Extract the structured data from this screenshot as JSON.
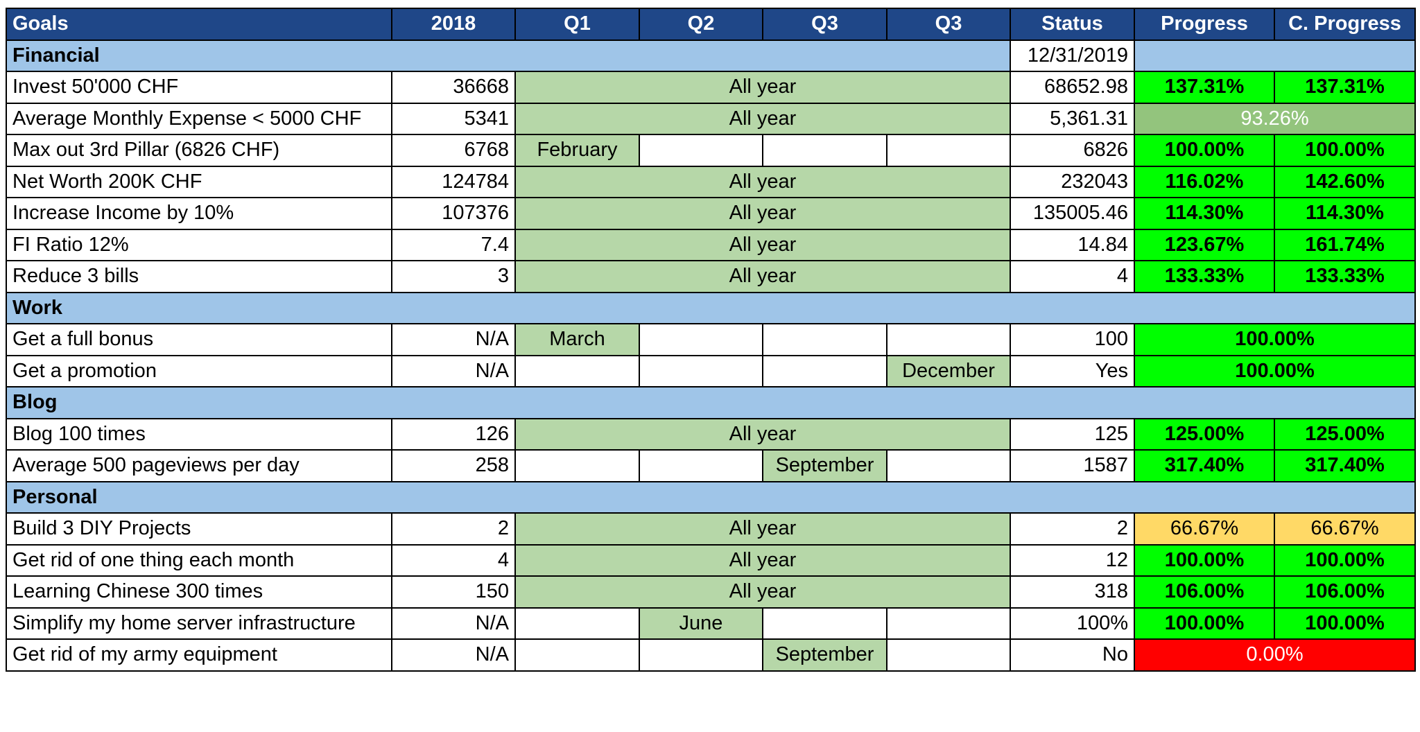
{
  "headers": {
    "goals": "Goals",
    "year": "2018",
    "q1": "Q1",
    "q2": "Q2",
    "q3a": "Q3",
    "q3b": "Q3",
    "status": "Status",
    "progress": "Progress",
    "c_progress": "C. Progress"
  },
  "colors": {
    "header_bg": "#1f4788",
    "section_bg": "#9fc5e8",
    "period_fill": "#b6d7a8",
    "progress_green": "#00ff00",
    "progress_muted": "#93c47d",
    "progress_amber": "#ffd966",
    "progress_red": "#ff0000"
  },
  "sections": {
    "financial": {
      "title": "Financial",
      "date": "12/31/2019",
      "rows": [
        {
          "goal": "Invest 50'000 CHF",
          "year": "36668",
          "period": "All year",
          "status": "68652.98",
          "progress": "137.31%",
          "c_progress": "137.31%"
        },
        {
          "goal": "Average Monthly Expense < 5000 CHF",
          "year": "5341",
          "period": "All year",
          "status": "5,361.31",
          "progress": "93.26%"
        },
        {
          "goal": "Max out 3rd Pillar (6826 CHF)",
          "year": "6768",
          "period": "February",
          "status": "6826",
          "progress": "100.00%",
          "c_progress": "100.00%"
        },
        {
          "goal": "Net Worth 200K CHF",
          "year": "124784",
          "period": "All year",
          "status": "232043",
          "progress": "116.02%",
          "c_progress": "142.60%"
        },
        {
          "goal": "Increase Income by 10%",
          "year": "107376",
          "period": "All year",
          "status": "135005.46",
          "progress": "114.30%",
          "c_progress": "114.30%"
        },
        {
          "goal": "FI Ratio 12%",
          "year": "7.4",
          "period": "All year",
          "status": "14.84",
          "progress": "123.67%",
          "c_progress": "161.74%"
        },
        {
          "goal": "Reduce 3 bills",
          "year": "3",
          "period": "All year",
          "status": "4",
          "progress": "133.33%",
          "c_progress": "133.33%"
        }
      ]
    },
    "work": {
      "title": "Work",
      "rows": [
        {
          "goal": "Get a full bonus",
          "year": "N/A",
          "period": "March",
          "status": "100",
          "progress": "100.00%"
        },
        {
          "goal": "Get a promotion",
          "year": "N/A",
          "period": "December",
          "status": "Yes",
          "progress": "100.00%"
        }
      ]
    },
    "blog": {
      "title": "Blog",
      "rows": [
        {
          "goal": "Blog 100 times",
          "year": "126",
          "period": "All year",
          "status": "125",
          "progress": "125.00%",
          "c_progress": "125.00%"
        },
        {
          "goal": "Average 500 pageviews per day",
          "year": "258",
          "period": "September",
          "status": "1587",
          "progress": "317.40%",
          "c_progress": "317.40%"
        }
      ]
    },
    "personal": {
      "title": "Personal",
      "rows": [
        {
          "goal": "Build 3 DIY Projects",
          "year": "2",
          "period": "All year",
          "status": "2",
          "progress": "66.67%",
          "c_progress": "66.67%"
        },
        {
          "goal": "Get rid of one thing each month",
          "year": "4",
          "period": "All year",
          "status": "12",
          "progress": "100.00%",
          "c_progress": "100.00%"
        },
        {
          "goal": "Learning Chinese 300 times",
          "year": "150",
          "period": "All year",
          "status": "318",
          "progress": "106.00%",
          "c_progress": "106.00%"
        },
        {
          "goal": "Simplify my home server infrastructure",
          "year": "N/A",
          "period": "June",
          "status": "100%",
          "progress": "100.00%",
          "c_progress": "100.00%"
        },
        {
          "goal": "Get rid of my army equipment",
          "year": "N/A",
          "period": "September",
          "status": "No",
          "progress": "0.00%"
        }
      ]
    }
  }
}
